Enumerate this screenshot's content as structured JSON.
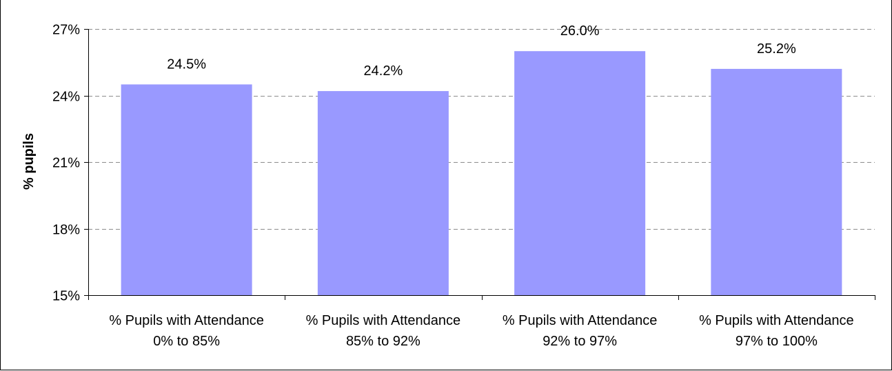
{
  "chart_data": {
    "type": "bar",
    "categories": [
      [
        "% Pupils with Attendance",
        "0% to 85%"
      ],
      [
        "% Pupils with Attendance",
        "85% to 92%"
      ],
      [
        "% Pupils with Attendance",
        "92% to 97%"
      ],
      [
        "% Pupils with Attendance",
        "97% to 100%"
      ]
    ],
    "values": [
      24.5,
      24.2,
      26.0,
      25.2
    ],
    "data_labels": [
      "24.5%",
      "24.2%",
      "26.0%",
      "25.2%"
    ],
    "ylabel": "% pupils",
    "ylim": [
      15,
      27
    ],
    "yticks": [
      15,
      18,
      21,
      24,
      27
    ],
    "ytick_labels": [
      "15%",
      "18%",
      "21%",
      "24%",
      "27%"
    ],
    "grid": true,
    "bar_color": "#9999ff"
  }
}
